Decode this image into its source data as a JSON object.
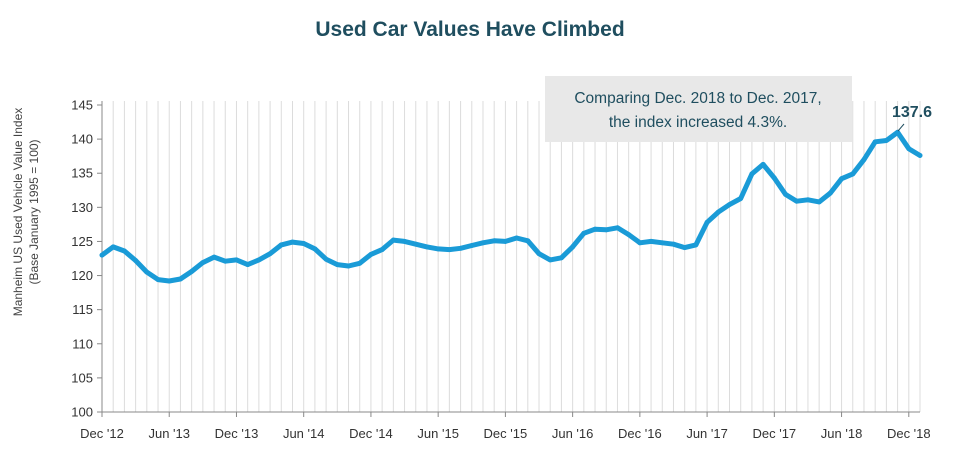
{
  "chart_data": {
    "type": "line",
    "title": "Used Car Values Have Climbed",
    "ylabel_line1": "Manheim US Used Vehicle Value Index",
    "ylabel_line2": "(Base January 1995 = 100)",
    "xlabel": "",
    "ylim": [
      100,
      145
    ],
    "y_ticks": [
      100,
      105,
      110,
      115,
      120,
      125,
      130,
      135,
      140,
      145
    ],
    "x_ticks": [
      {
        "label": "Dec '12",
        "index": 0
      },
      {
        "label": "Jun '13",
        "index": 6
      },
      {
        "label": "Dec '13",
        "index": 12
      },
      {
        "label": "Jun '14",
        "index": 18
      },
      {
        "label": "Dec '14",
        "index": 24
      },
      {
        "label": "Jun '15",
        "index": 30
      },
      {
        "label": "Dec '15",
        "index": 36
      },
      {
        "label": "Jun '16",
        "index": 42
      },
      {
        "label": "Dec '16",
        "index": 48
      },
      {
        "label": "Jun '17",
        "index": 54
      },
      {
        "label": "Dec '17",
        "index": 60
      },
      {
        "label": "Jun '18",
        "index": 66
      },
      {
        "label": "Dec '18",
        "index": 72
      }
    ],
    "grid": "vertical",
    "series": [
      {
        "color": "#1a9bd7",
        "values": [
          123.0,
          124.2,
          123.6,
          122.2,
          120.5,
          119.4,
          119.2,
          119.5,
          120.6,
          121.9,
          122.7,
          122.1,
          122.3,
          121.6,
          122.3,
          123.2,
          124.5,
          124.9,
          124.7,
          123.9,
          122.4,
          121.6,
          121.4,
          121.8,
          123.1,
          123.8,
          125.2,
          125.0,
          124.6,
          124.2,
          123.9,
          123.8,
          124.0,
          124.4,
          124.8,
          125.1,
          125.0,
          125.5,
          125.1,
          123.2,
          122.3,
          122.6,
          124.2,
          126.2,
          126.8,
          126.7,
          127.0,
          126.0,
          124.8,
          125.0,
          124.8,
          124.6,
          124.1,
          124.5,
          127.8,
          129.3,
          130.4,
          131.3,
          134.9,
          136.3,
          134.3,
          131.9,
          130.9,
          131.1,
          130.8,
          132.1,
          134.2,
          134.9,
          137.0,
          139.6,
          139.8,
          141.0,
          138.6,
          137.6
        ]
      }
    ],
    "annotation": {
      "line1": "Comparing Dec. 2018 to Dec. 2017,",
      "line2": "the index increased 4.3%.",
      "box_color": "#e8e8e8",
      "text_color": "#1f4e5f"
    },
    "end_label": "137.6"
  }
}
